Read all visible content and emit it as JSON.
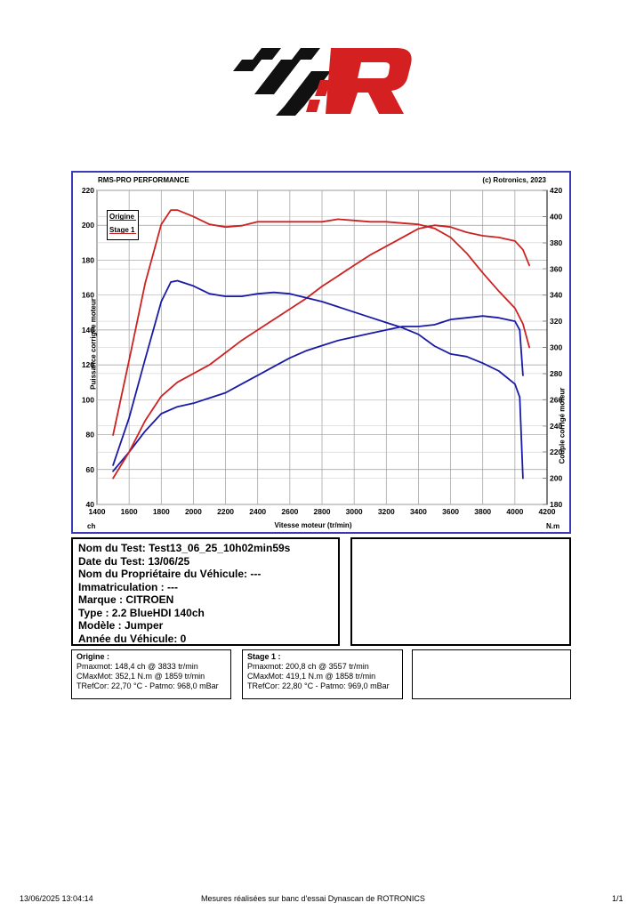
{
  "chart_data": {
    "type": "line",
    "title": "RMS-PRO PERFORMANCE",
    "copyright": "(c) Rotronics, 2023",
    "xlabel": "Vitesse moteur (tr/min)",
    "x_unit_left": "ch",
    "x_unit_right": "N.m",
    "ylabel_left": "Puissance corrigée moteur",
    "ylabel_right": "Couple corrigé moteur",
    "xlim": [
      1400,
      4200
    ],
    "ylim_left": [
      40,
      220
    ],
    "ylim_right": [
      180,
      420
    ],
    "x_ticks": [
      1400,
      1600,
      1800,
      2000,
      2200,
      2400,
      2600,
      2800,
      3000,
      3200,
      3400,
      3600,
      3800,
      4000,
      4200
    ],
    "y_left_ticks": [
      40,
      60,
      80,
      100,
      120,
      140,
      160,
      180,
      200,
      220
    ],
    "y_right_ticks": [
      180,
      200,
      220,
      240,
      260,
      280,
      300,
      320,
      340,
      360,
      380,
      400,
      420
    ],
    "grid": true,
    "legend": [
      "Origine",
      "Stage 1"
    ],
    "series": [
      {
        "name": "Origine",
        "measure": "power",
        "axis": "left",
        "color": "#1a1aa6",
        "x": [
          1500,
          1600,
          1700,
          1800,
          1900,
          2000,
          2100,
          2200,
          2300,
          2400,
          2500,
          2600,
          2700,
          2800,
          2900,
          3000,
          3100,
          3200,
          3300,
          3400,
          3500,
          3600,
          3700,
          3800,
          3900,
          4000,
          4030,
          4050
        ],
        "y": [
          59,
          70,
          82,
          92,
          96,
          98,
          101,
          104,
          109,
          114,
          119,
          124,
          128,
          131,
          134,
          136,
          138,
          140,
          142,
          142,
          143,
          146,
          147,
          148,
          147,
          145,
          140,
          114
        ]
      },
      {
        "name": "Stage 1",
        "measure": "power",
        "axis": "left",
        "color": "#cc2222",
        "x": [
          1500,
          1600,
          1700,
          1800,
          1900,
          2000,
          2100,
          2200,
          2300,
          2400,
          2500,
          2600,
          2700,
          2800,
          2900,
          3000,
          3100,
          3200,
          3300,
          3400,
          3500,
          3600,
          3700,
          3800,
          3900,
          4000,
          4050,
          4090
        ],
        "y": [
          55,
          70,
          88,
          102,
          110,
          115,
          120,
          127,
          134,
          140,
          146,
          152,
          158,
          165,
          171,
          177,
          183,
          188,
          193,
          198,
          200,
          199,
          196,
          194,
          193,
          191,
          186,
          177
        ]
      },
      {
        "name": "Origine",
        "measure": "torque",
        "axis": "right",
        "color": "#1a1aa6",
        "x": [
          1500,
          1600,
          1700,
          1800,
          1860,
          1900,
          2000,
          2100,
          2200,
          2300,
          2400,
          2500,
          2600,
          2700,
          2800,
          2900,
          3000,
          3100,
          3200,
          3300,
          3400,
          3500,
          3600,
          3700,
          3800,
          3900,
          4000,
          4030,
          4050
        ],
        "y": [
          210,
          246,
          291,
          335,
          350,
          351,
          347,
          341,
          339,
          339,
          341,
          342,
          341,
          338,
          335,
          331,
          327,
          323,
          319,
          315,
          310,
          301,
          295,
          293,
          288,
          282,
          272,
          262,
          200
        ]
      },
      {
        "name": "Stage 1",
        "measure": "torque",
        "axis": "right",
        "color": "#cc2222",
        "x": [
          1500,
          1600,
          1700,
          1800,
          1860,
          1900,
          2000,
          2100,
          2200,
          2300,
          2400,
          2500,
          2600,
          2700,
          2800,
          2900,
          3000,
          3100,
          3200,
          3300,
          3400,
          3500,
          3600,
          3700,
          3800,
          3900,
          4000,
          4050,
          4090
        ],
        "y": [
          233,
          290,
          349,
          394,
          405,
          405,
          400,
          394,
          392,
          393,
          396,
          396,
          396,
          396,
          396,
          398,
          397,
          396,
          396,
          395,
          394,
          391,
          384,
          372,
          357,
          343,
          330,
          318,
          300
        ]
      }
    ]
  },
  "test_info": {
    "test_name": "Nom du Test: Test13_06_25_10h02min59s",
    "test_date": "Date du Test: 13/06/25",
    "owner": "Nom du Propriétaire du Véhicule: ---",
    "registration": "Immatriculation  : ---",
    "brand": "Marque  : CITROEN",
    "type": "Type  : 2.2 BlueHDI 140ch",
    "model": "Modèle  : Jumper",
    "year": "Année du Véhicule: 0"
  },
  "results": {
    "origine": {
      "title": "Origine :",
      "pmax": "Pmaxmot: 148,4 ch @ 3833 tr/min",
      "cmax": "CMaxMot: 352,1 N.m @ 1859 tr/min",
      "tref": "TRefCor: 22,70 °C - Patmo: 968,0 mBar"
    },
    "stage1": {
      "title": "Stage 1 :",
      "pmax": "Pmaxmot: 200,8 ch @ 3557 tr/min",
      "cmax": "CMaxMot: 419,1 N.m @ 1858 tr/min",
      "tref": "TRefCor: 22,80 °C - Patmo: 969,0 mBar"
    }
  },
  "footer": {
    "timestamp": "13/06/2025 13:04:14",
    "note": "Mesures réalisées sur banc d'essai Dynascan de ROTRONICS",
    "page": "1/1"
  }
}
